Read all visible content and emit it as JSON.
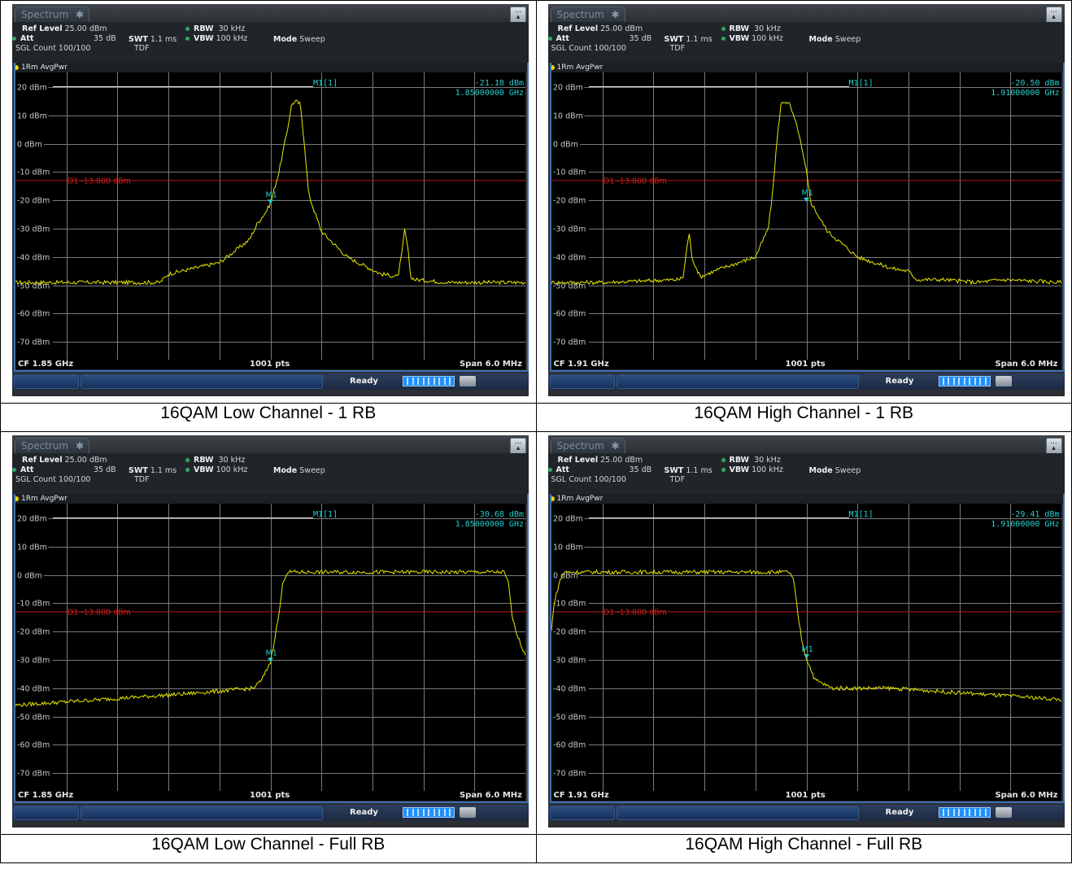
{
  "panels": [
    {
      "tab": "Spectrum",
      "menu_glyph": "...",
      "ref_level_label": "Ref Level",
      "ref_level": "25.00 dBm",
      "att_label": "Att",
      "att": "35 dB",
      "swt_label": "SWT",
      "swt": "1.1 ms",
      "rbw_label": "RBW",
      "rbw": "30 kHz",
      "vbw_label": "VBW",
      "vbw": "100 kHz",
      "mode_label": "Mode",
      "mode": "Sweep",
      "sgl": "SGL Count 100/100",
      "tdf": "TDF",
      "trace": "1Rm AvgPwr",
      "marker_name": "M1[1]",
      "marker_level": "-21.18 dBm",
      "marker_freq": "1.85000000 GHz",
      "marker_tag": "M1",
      "d1": "D1  -13.000 dBm",
      "cf": "CF 1.85 GHz",
      "pts": "1001 pts",
      "span": "Span 6.0 MHz",
      "status": "Ready",
      "caption": "16QAM Low Channel - 1 RB"
    },
    {
      "tab": "Spectrum",
      "menu_glyph": "...",
      "ref_level_label": "Ref Level",
      "ref_level": "25.00 dBm",
      "att_label": "Att",
      "att": "35 dB",
      "swt_label": "SWT",
      "swt": "1.1 ms",
      "rbw_label": "RBW",
      "rbw": "30 kHz",
      "vbw_label": "VBW",
      "vbw": "100 kHz",
      "mode_label": "Mode",
      "mode": "Sweep",
      "sgl": "SGL Count 100/100",
      "tdf": "TDF",
      "trace": "1Rm AvgPwr",
      "marker_name": "M1[1]",
      "marker_level": "-20.50 dBm",
      "marker_freq": "1.91000000 GHz",
      "marker_tag": "M1",
      "d1": "D1  -13.000 dBm",
      "cf": "CF 1.91 GHz",
      "pts": "1001 pts",
      "span": "Span 6.0 MHz",
      "status": "Ready",
      "caption": "16QAM High Channel - 1 RB"
    },
    {
      "tab": "Spectrum",
      "menu_glyph": "...",
      "ref_level_label": "Ref Level",
      "ref_level": "25.00 dBm",
      "att_label": "Att",
      "att": "35 dB",
      "swt_label": "SWT",
      "swt": "1.1 ms",
      "rbw_label": "RBW",
      "rbw": "30 kHz",
      "vbw_label": "VBW",
      "vbw": "100 kHz",
      "mode_label": "Mode",
      "mode": "Sweep",
      "sgl": "SGL Count 100/100",
      "tdf": "TDF",
      "trace": "1Rm AvgPwr",
      "marker_name": "M1[1]",
      "marker_level": "-30.68 dBm",
      "marker_freq": "1.85000000 GHz",
      "marker_tag": "M1",
      "d1": "D1  -13.000 dBm",
      "cf": "CF 1.85 GHz",
      "pts": "1001 pts",
      "span": "Span 6.0 MHz",
      "status": "Ready",
      "caption": "16QAM Low Channel - Full RB"
    },
    {
      "tab": "Spectrum",
      "menu_glyph": "...",
      "ref_level_label": "Ref Level",
      "ref_level": "25.00 dBm",
      "att_label": "Att",
      "att": "35 dB",
      "swt_label": "SWT",
      "swt": "1.1 ms",
      "rbw_label": "RBW",
      "rbw": "30 kHz",
      "vbw_label": "VBW",
      "vbw": "100 kHz",
      "mode_label": "Mode",
      "mode": "Sweep",
      "sgl": "SGL Count 100/100",
      "tdf": "TDF",
      "trace": "1Rm AvgPwr",
      "marker_name": "M1[1]",
      "marker_level": "-29.41 dBm",
      "marker_freq": "1.91000000 GHz",
      "marker_tag": "M1",
      "d1": "D1  -13.000 dBm",
      "cf": "CF 1.91 GHz",
      "pts": "1001 pts",
      "span": "Span 6.0 MHz",
      "status": "Ready",
      "caption": "16QAM High Channel - Full RB"
    }
  ],
  "chart_data": [
    {
      "type": "line",
      "ylabels": [
        "20 dBm",
        "10 dBm",
        "0 dBm",
        "-10 dBm",
        "-20 dBm",
        "-30 dBm",
        "-40 dBm",
        "-50 dBm",
        "-60 dBm",
        "-70 dBm"
      ],
      "ylim": [
        -75,
        25
      ],
      "xlim_mhz": [
        -3,
        3
      ],
      "limit_line_dbm": -13,
      "marker": {
        "x_mhz": 0,
        "y_dbm": -21.18
      },
      "trace": {
        "x_mhz": [
          -3,
          -2.4,
          -1.3,
          -1.2,
          -0.6,
          -0.25,
          -0.15,
          -0.05,
          0,
          0.1,
          0.2,
          0.25,
          0.3,
          0.35,
          0.4,
          0.45,
          0.6,
          0.9,
          1.3,
          1.5,
          1.55,
          1.58,
          1.62,
          1.65,
          1.7,
          2.1,
          3
        ],
        "y_dbm": [
          -49,
          -49,
          -49,
          -46,
          -42,
          -34,
          -28,
          -24,
          -21,
          -10,
          5,
          14,
          15,
          14,
          0,
          -18,
          -31,
          -40,
          -46,
          -47,
          -38,
          -30,
          -38,
          -47,
          -48,
          -49,
          -49
        ]
      },
      "color": "#e8e800"
    },
    {
      "type": "line",
      "ylabels": [
        "20 dBm",
        "10 dBm",
        "0 dBm",
        "-10 dBm",
        "-20 dBm",
        "-30 dBm",
        "-40 dBm",
        "-50 dBm",
        "-60 dBm",
        "-70 dBm"
      ],
      "ylim": [
        -75,
        25
      ],
      "xlim_mhz": [
        -3,
        3
      ],
      "limit_line_dbm": -13,
      "marker": {
        "x_mhz": 0,
        "y_dbm": -20.5
      },
      "trace": {
        "x_mhz": [
          -3,
          -2.4,
          -1.5,
          -1.45,
          -1.42,
          -1.38,
          -1.35,
          -1.25,
          -1.0,
          -0.6,
          -0.45,
          -0.4,
          -0.35,
          -0.3,
          -0.25,
          -0.2,
          -0.1,
          0,
          0.05,
          0.15,
          0.25,
          0.6,
          1.0,
          1.2,
          1.3,
          1.6,
          2.0,
          2.3,
          3
        ],
        "y_dbm": [
          -49,
          -49,
          -48,
          -47,
          -40,
          -31,
          -40,
          -47,
          -44,
          -40,
          -30,
          -18,
          0,
          14,
          15,
          14,
          5,
          -10,
          -20.5,
          -26,
          -31,
          -40,
          -44,
          -45,
          -48,
          -48,
          -49,
          -48,
          -49
        ]
      },
      "color": "#e8e800"
    },
    {
      "type": "line",
      "ylabels": [
        "20 dBm",
        "10 dBm",
        "0 dBm",
        "-10 dBm",
        "-20 dBm",
        "-30 dBm",
        "-40 dBm",
        "-50 dBm",
        "-60 dBm",
        "-70 dBm"
      ],
      "ylim": [
        -75,
        25
      ],
      "xlim_mhz": [
        -3,
        3
      ],
      "limit_line_dbm": -13,
      "marker": {
        "x_mhz": 0,
        "y_dbm": -30.68
      },
      "trace": {
        "x_mhz": [
          -3,
          -2,
          -1,
          -0.2,
          -0.1,
          0,
          0.1,
          0.15,
          0.2,
          0.5,
          1.5,
          2.5,
          2.75,
          2.8,
          2.85,
          2.95,
          3
        ],
        "y_dbm": [
          -46,
          -44,
          -42,
          -40,
          -37,
          -30.68,
          -14,
          -2,
          1,
          1,
          1,
          1,
          1,
          -3,
          -16,
          -25,
          -28
        ]
      },
      "color": "#e8e800"
    },
    {
      "type": "line",
      "ylabels": [
        "20 dBm",
        "10 dBm",
        "0 dBm",
        "-10 dBm",
        "-20 dBm",
        "-30 dBm",
        "-40 dBm",
        "-50 dBm",
        "-60 dBm",
        "-70 dBm"
      ],
      "ylim": [
        -75,
        25
      ],
      "xlim_mhz": [
        -3,
        3
      ],
      "limit_line_dbm": -13,
      "marker": {
        "x_mhz": 0,
        "y_dbm": -29.41
      },
      "trace": {
        "x_mhz": [
          -3,
          -2.97,
          -2.9,
          -2.85,
          -2.8,
          -2.5,
          -1.5,
          -0.5,
          -0.2,
          -0.15,
          -0.1,
          -0.05,
          0,
          0.1,
          0.3,
          1,
          2,
          3
        ],
        "y_dbm": [
          -20,
          -10,
          -2,
          1,
          1,
          1,
          1,
          1,
          1,
          -2,
          -14,
          -24,
          -29.41,
          -37,
          -40,
          -40,
          -42,
          -44
        ]
      },
      "color": "#e8e800"
    }
  ]
}
